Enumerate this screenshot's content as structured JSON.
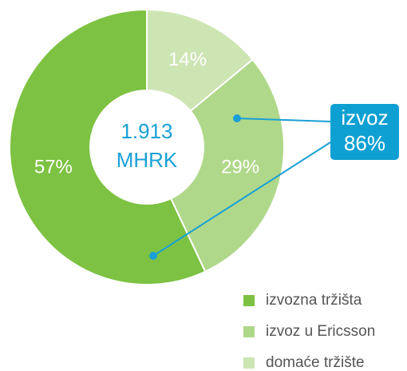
{
  "chart_data": {
    "type": "pie",
    "categories": [
      "izvozna tržišta",
      "izvoz u Ericsson",
      "domaće tržište"
    ],
    "values": [
      57,
      29,
      14
    ],
    "value_labels": [
      "57%",
      "29%",
      "14%"
    ],
    "colors": [
      "#7dc242",
      "#b0d88a",
      "#cde5b3"
    ],
    "center_label": [
      "1.913",
      "MHRK"
    ],
    "annotation": [
      "izvoz",
      "86%"
    ]
  }
}
